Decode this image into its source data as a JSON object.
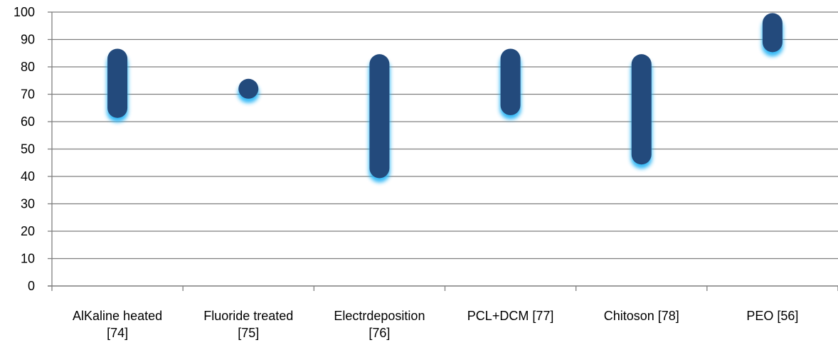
{
  "chart_data": {
    "type": "bar",
    "subtype": "floating-range",
    "categories": [
      [
        "AlKaline heated",
        "[74]"
      ],
      [
        "Fluoride treated",
        "[75]"
      ],
      [
        "Electrdeposition",
        "[76]"
      ],
      [
        "PCL+DCM [77]"
      ],
      [
        "Chitoson [78]"
      ],
      [
        "PEO [56]"
      ]
    ],
    "ranges": [
      [
        65,
        83
      ],
      [
        72,
        72
      ],
      [
        43,
        81
      ],
      [
        66,
        83
      ],
      [
        48,
        81
      ],
      [
        89,
        96
      ]
    ],
    "ylim": [
      0,
      100
    ],
    "yticks": [
      0,
      10,
      20,
      30,
      40,
      50,
      60,
      70,
      80,
      90,
      100
    ],
    "grid": true,
    "legend": "none",
    "colors": {
      "bar": "#234a7c",
      "glow": "#29b6f6",
      "grid": "#7f7f7f",
      "axis": "#7f7f7f"
    }
  }
}
